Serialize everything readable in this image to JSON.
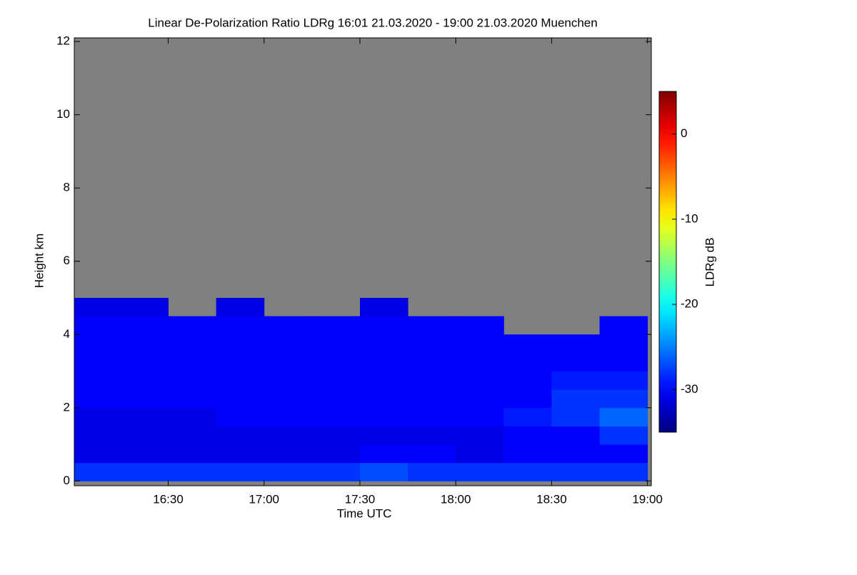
{
  "chart_data": {
    "type": "heatmap",
    "title": "Linear De-Polarization Ratio LDRg   16:01 21.03.2020 - 19:00 21.03.2020 Muenchen",
    "x_label": "Time UTC",
    "y_label": "Height km",
    "colorbar_label": "LDRg dB",
    "x": [
      16.125,
      16.375,
      16.625,
      16.875,
      17.125,
      17.375,
      17.625,
      17.875,
      18.125,
      18.375,
      18.625,
      18.875
    ],
    "y": [
      0.25,
      0.75,
      1.25,
      1.75,
      2.25,
      2.75,
      3.25,
      3.75,
      4.25,
      4.75
    ],
    "z": [
      [
        -28,
        -28,
        -28,
        -28,
        -28,
        -28,
        -27,
        -28,
        -28,
        -28,
        -28,
        -28
      ],
      [
        -31,
        -31,
        -31,
        -31,
        -31,
        -31,
        -30,
        -30,
        -31,
        -30,
        -30,
        -30
      ],
      [
        -31,
        -31,
        -31,
        -31,
        -31,
        -31,
        -31,
        -31,
        -31,
        -30,
        -30,
        -28
      ],
      [
        -31,
        -31,
        -31,
        -30,
        -30,
        -30,
        -30,
        -30,
        -30,
        -29,
        -28,
        -26
      ],
      [
        -30,
        -30,
        -30,
        -30,
        -30,
        -30,
        -30,
        -30,
        -30,
        -30,
        -28,
        -28
      ],
      [
        -30,
        -30,
        -30,
        -30,
        -30,
        -30,
        -30,
        -30,
        -30,
        -30,
        -29,
        -29
      ],
      [
        -30,
        -30,
        -30,
        -30,
        -30,
        -30,
        -30,
        -30,
        -30,
        -30,
        -30,
        -30
      ],
      [
        -30,
        -30,
        -30,
        -30,
        -30,
        -30,
        -30,
        -30,
        -30,
        -30,
        -30,
        -30
      ],
      [
        -30,
        -30,
        -30,
        -30,
        -30,
        -30,
        -30,
        -30,
        -30,
        null,
        null,
        -30
      ],
      [
        -31,
        -31,
        null,
        -31,
        null,
        null,
        -31,
        null,
        null,
        null,
        null,
        null
      ]
    ],
    "nodata_color": "#808080",
    "xlim": [
      16.01,
      19.02
    ],
    "xticks": [
      {
        "value": 16.5,
        "label": "16:30"
      },
      {
        "value": 17,
        "label": "17:00"
      },
      {
        "value": 17.5,
        "label": "17:30"
      },
      {
        "value": 18,
        "label": "18:00"
      },
      {
        "value": 18.5,
        "label": "18:30"
      },
      {
        "value": 19,
        "label": "19:00"
      }
    ],
    "ylim": [
      -0.13,
      12.1
    ],
    "yticks": [
      0,
      2,
      4,
      6,
      8,
      10,
      12
    ],
    "zlim": [
      -35,
      5
    ],
    "zticks": [
      0,
      -10,
      -20,
      -30
    ],
    "colormap": "jet"
  }
}
